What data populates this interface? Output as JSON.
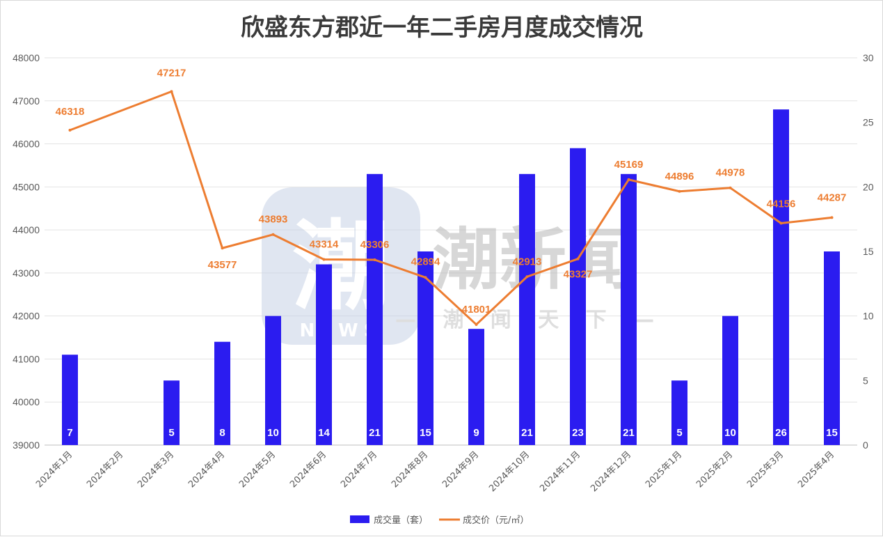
{
  "chart_data": {
    "type": "bar+line",
    "title": "欣盛东方郡近一年二手房月度成交情况",
    "categories": [
      "2024年1月",
      "2024年2月",
      "2024年3月",
      "2024年4月",
      "2024年5月",
      "2024年6月",
      "2024年7月",
      "2024年8月",
      "2024年9月",
      "2024年10月",
      "2024年11月",
      "2024年12月",
      "2025年1月",
      "2025年2月",
      "2025年3月",
      "2025年4月"
    ],
    "series": [
      {
        "name": "成交量（套）",
        "type": "bar",
        "axis": "right",
        "values": [
          7,
          0,
          5,
          8,
          10,
          14,
          21,
          15,
          9,
          21,
          23,
          21,
          5,
          10,
          26,
          15
        ],
        "labels": [
          "7",
          "",
          "5",
          "8",
          "10",
          "14",
          "21",
          "15",
          "9",
          "21",
          "23",
          "21",
          "5",
          "10",
          "26",
          "15"
        ],
        "color": "#2b1cf0"
      },
      {
        "name": "成交价（元/㎡）",
        "type": "line",
        "axis": "left",
        "values": [
          46318,
          null,
          47217,
          43577,
          43893,
          43314,
          43306,
          42894,
          41801,
          42913,
          43327,
          45169,
          44896,
          44978,
          44156,
          44287
        ],
        "labels": [
          "46318",
          "",
          "47217",
          "43577",
          "43893",
          "43314",
          "43306",
          "42894",
          "41801",
          "42913",
          "43327",
          "45169",
          "44896",
          "44978",
          "44156",
          "44287"
        ],
        "color": "#ed7d31"
      }
    ],
    "y_left": {
      "min": 39000,
      "max": 48000,
      "step": 1000,
      "ticks": [
        "39000",
        "40000",
        "41000",
        "42000",
        "43000",
        "44000",
        "45000",
        "46000",
        "47000",
        "48000"
      ]
    },
    "y_right": {
      "min": 0,
      "max": 30,
      "step": 5,
      "ticks": [
        "0",
        "5",
        "10",
        "15",
        "20",
        "25",
        "30"
      ]
    },
    "grid": true,
    "legend_position": "bottom",
    "label_color": "#ed7d31"
  },
  "watermark": {
    "logo_char": "潮",
    "logo_sub": "NEWS",
    "brand": "潮新闻",
    "slogan": "— 潮 闻 天 下 —"
  }
}
